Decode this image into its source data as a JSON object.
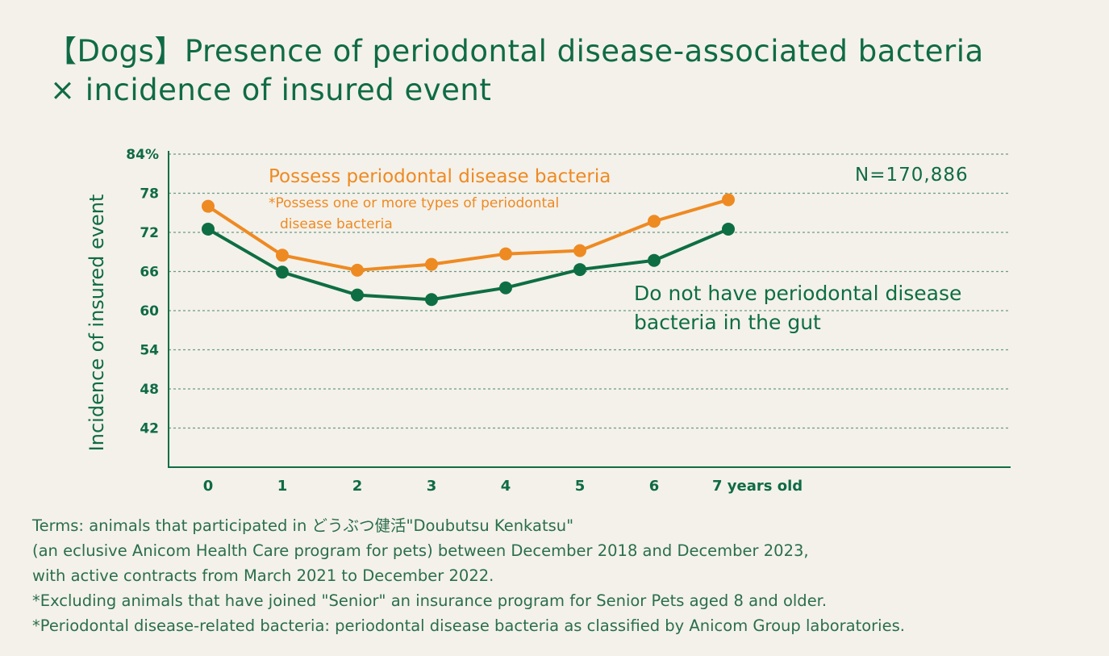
{
  "title_line1": "【Dogs】Presence of periodontal disease-associated bacteria",
  "title_line2": "× incidence of insured event",
  "colors": {
    "orange": "#ee8a22",
    "green": "#0e6e43",
    "text_green": "#0f6b45",
    "grid": "#6a9b86"
  },
  "chart_data": {
    "type": "line",
    "ylabel": "Incidence of insured event",
    "y_ticks": [
      "84%",
      "78",
      "72",
      "66",
      "60",
      "54",
      "48",
      "42"
    ],
    "ylim": [
      36,
      84
    ],
    "categories": [
      "0",
      "1",
      "2",
      "3",
      "4",
      "5",
      "6",
      "7 years old"
    ],
    "series": [
      {
        "name": "Possess periodontal disease bacteria",
        "note": "*Possess one or more types of periodontal disease bacteria",
        "color": "#ee8a22",
        "values": [
          76.0,
          68.5,
          66.2,
          67.1,
          68.7,
          69.2,
          73.7,
          77.0
        ]
      },
      {
        "name": "Do not have periodontal disease bacteria in the gut",
        "color": "#0e6e43",
        "values": [
          72.5,
          65.9,
          62.4,
          61.7,
          63.5,
          66.3,
          67.7,
          72.5
        ]
      }
    ],
    "annotation": "N=170,886",
    "grid": true
  },
  "chart_text": {
    "orange_label": "Possess periodontal disease bacteria",
    "orange_note_1": "*Possess one or more types of periodontal",
    "orange_note_2": "disease bacteria",
    "green_label_1": "Do not have periodontal disease",
    "green_label_2": "bacteria in the gut"
  },
  "notes": [
    "Terms: animals that participated in どうぶつ健活\"Doubutsu Kenkatsu\"",
    "(an eclusive Anicom Health Care program for pets) between December 2018 and December 2023,",
    " with active contracts from March 2021 to December 2022.",
    "*Excluding animals that have joined \"Senior\" an insurance program for Senior Pets aged 8 and older.",
    "*Periodontal disease-related bacteria: periodontal disease bacteria as classified by Anicom Group laboratories."
  ]
}
